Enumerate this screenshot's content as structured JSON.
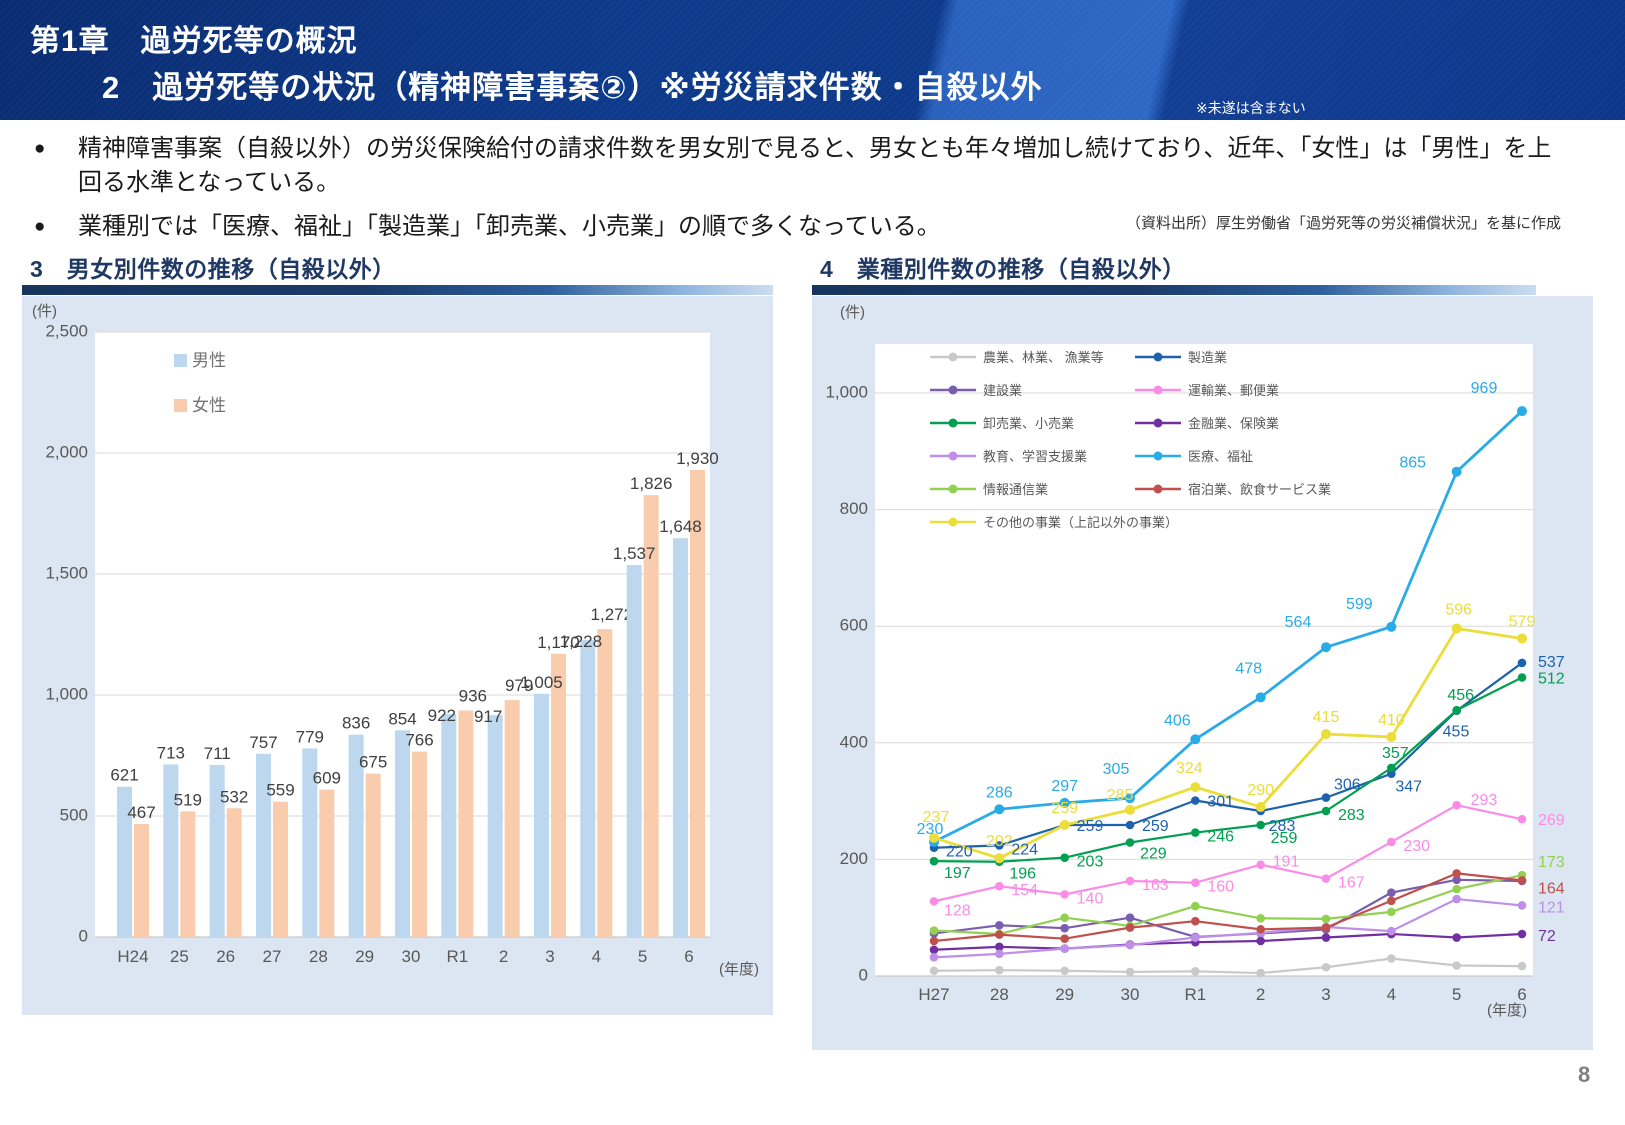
{
  "page": {
    "number": "8"
  },
  "header": {
    "line1": "第1章　過労死等の概況",
    "line2": "2　過労死等の状況（精神障害事案②）※労災請求件数・自殺以外",
    "note": "※未遂は含まない"
  },
  "summary": {
    "bullet_char": "●",
    "bullets": [
      "精神障害事案（自殺以外）の労災保険給付の請求件数を男女別で見ると、男女とも年々増加し続けており、近年、「女性」は「男性」を上回る水準となっている。",
      "業種別では「医療、福祉」「製造業」「卸売業、小売業」の順で多くなっている。"
    ],
    "source": "（資料出所）厚生労働省「過労死等の労災補償状況」を基に作成"
  },
  "colors": {
    "header_blue": "#0e3a8c",
    "section_title": "#1f3864",
    "panel_bg": "#dce6f2",
    "gridline": "#d9d9d9",
    "axis_text": "#595959",
    "bar_label": "#404040",
    "male_bar": "#bdd7ee",
    "female_bar": "#f8ccad"
  },
  "chart_data": [
    {
      "type": "bar",
      "title": "3　男女別件数の推移（自殺以外）",
      "unit_label": "(件)",
      "xlabel": "(年度)",
      "categories": [
        "H24",
        "25",
        "26",
        "27",
        "28",
        "29",
        "30",
        "R1",
        "2",
        "3",
        "4",
        "5",
        "6"
      ],
      "series": [
        {
          "name": "男性",
          "color": "#bdd7ee",
          "values": [
            621,
            713,
            711,
            757,
            779,
            836,
            854,
            922,
            917,
            1005,
            1228,
            1537,
            1648
          ]
        },
        {
          "name": "女性",
          "color": "#f8ccad",
          "values": [
            467,
            519,
            532,
            559,
            609,
            675,
            766,
            936,
            979,
            1170,
            1272,
            1826,
            1930
          ]
        }
      ],
      "ylim": [
        0,
        2500
      ],
      "ytick_values": [
        0,
        500,
        1000,
        1500,
        2000,
        2500
      ],
      "ytick_labels": [
        "0",
        "500",
        "1,000",
        "1,500",
        "2,000",
        "2,500"
      ],
      "grid": true,
      "legend_position": "top-left-inside"
    },
    {
      "type": "line",
      "title": "4　業種別件数の推移（自殺以外）",
      "unit_label": "(件)",
      "xlabel": "(年度)",
      "categories": [
        "H27",
        "28",
        "29",
        "30",
        "R1",
        "2",
        "3",
        "4",
        "5",
        "6"
      ],
      "ylim": [
        0,
        1000
      ],
      "ytick_values": [
        0,
        200,
        400,
        600,
        800,
        1000
      ],
      "ytick_labels": [
        "0",
        "200",
        "400",
        "600",
        "800",
        "1,000"
      ],
      "grid": true,
      "legend_position": "top-inside-two-columns",
      "series": [
        {
          "name": "農業、林業、 漁業等",
          "color": "#c9c9c9",
          "values": [
            9,
            10,
            9,
            7,
            8,
            5,
            15,
            30,
            18,
            17
          ],
          "labels": [
            null,
            null,
            null,
            null,
            null,
            null,
            null,
            null,
            null,
            null
          ]
        },
        {
          "name": "製造業",
          "color": "#1e62ae",
          "values": [
            220,
            224,
            259,
            259,
            301,
            283,
            306,
            347,
            455,
            537
          ],
          "labels": [
            "220",
            "224",
            "259",
            "259",
            "301",
            "283",
            "306",
            "347",
            "455",
            "537"
          ]
        },
        {
          "name": "建設業",
          "color": "#7a5eae",
          "values": [
            73,
            87,
            82,
            100,
            67,
            73,
            80,
            143,
            165,
            163
          ],
          "labels": [
            null,
            null,
            null,
            null,
            null,
            null,
            null,
            null,
            null,
            null
          ]
        },
        {
          "name": "運輸業、郵便業",
          "color": "#fa8ce8",
          "values": [
            128,
            154,
            140,
            163,
            160,
            191,
            167,
            230,
            293,
            269
          ],
          "labels": [
            "128",
            "154",
            "140",
            "163",
            "160",
            "191",
            "167",
            "230",
            "293",
            "269"
          ]
        },
        {
          "name": "卸売業、小売業",
          "color": "#00a050",
          "values": [
            197,
            196,
            203,
            229,
            246,
            259,
            283,
            357,
            456,
            512
          ],
          "labels": [
            "197",
            "196",
            "203",
            "229",
            "246",
            "259",
            "283",
            "357",
            "456",
            "512"
          ]
        },
        {
          "name": "金融業、保険業",
          "color": "#7030a0",
          "values": [
            45,
            50,
            47,
            54,
            58,
            60,
            66,
            72,
            66,
            72
          ],
          "labels": [
            null,
            null,
            null,
            null,
            null,
            null,
            null,
            null,
            null,
            "72"
          ]
        },
        {
          "name": "教育、学習支援業",
          "color": "#bd8fe8",
          "values": [
            32,
            38,
            47,
            53,
            66,
            74,
            84,
            77,
            132,
            121
          ],
          "labels": [
            null,
            null,
            null,
            null,
            null,
            null,
            null,
            null,
            null,
            "121"
          ]
        },
        {
          "name": "医療、福祉",
          "color": "#29abe8",
          "values": [
            230,
            286,
            297,
            305,
            406,
            478,
            564,
            599,
            865,
            969
          ],
          "labels": [
            "230",
            "286",
            "297",
            "305",
            "406",
            "478",
            "564",
            "599",
            "865",
            "969"
          ]
        },
        {
          "name": "情報通信業",
          "color": "#92d050",
          "values": [
            78,
            72,
            100,
            86,
            120,
            99,
            98,
            110,
            149,
            173
          ],
          "labels": [
            null,
            null,
            null,
            null,
            null,
            null,
            null,
            null,
            null,
            "173"
          ]
        },
        {
          "name": "宿泊業、飲食サービス業",
          "color": "#c0504d",
          "values": [
            60,
            71,
            64,
            83,
            94,
            80,
            83,
            129,
            176,
            164
          ],
          "labels": [
            null,
            null,
            null,
            null,
            null,
            null,
            null,
            null,
            null,
            "164"
          ]
        },
        {
          "name": "その他の事業（上記以外の事業）",
          "color": "#ebdd3a",
          "values": [
            237,
            202,
            259,
            285,
            324,
            290,
            415,
            410,
            596,
            579
          ],
          "labels": [
            "237",
            "202",
            "259",
            "285",
            "324",
            "290",
            "415",
            "410",
            "596",
            "579"
          ]
        }
      ]
    }
  ]
}
